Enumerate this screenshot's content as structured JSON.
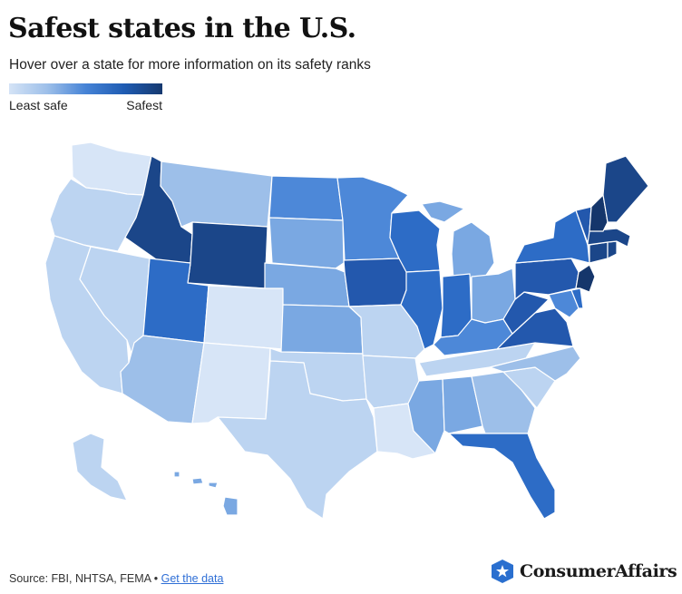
{
  "header": {
    "title": "Safest states in the U.S.",
    "subtitle": "Hover over a state for more information on its safety ranks"
  },
  "legend": {
    "min_label": "Least safe",
    "max_label": "Safest",
    "colors": [
      "#d4e3f6",
      "#9dbfe9",
      "#4683d6",
      "#1f5cb3",
      "#16396f"
    ]
  },
  "map": {
    "scale_legend": "darker = safer",
    "shade_levels": {
      "1": "#d7e5f7",
      "2": "#bcd4f1",
      "3": "#9dbfe9",
      "4": "#7aa8e2",
      "5": "#4d88d8",
      "6": "#2d6cc6",
      "7": "#2358ad",
      "8": "#1b4689",
      "9": "#15366b"
    },
    "states": [
      {
        "code": "WA",
        "level": 1
      },
      {
        "code": "OR",
        "level": 2
      },
      {
        "code": "CA",
        "level": 2
      },
      {
        "code": "NV",
        "level": 2
      },
      {
        "code": "ID",
        "level": 8
      },
      {
        "code": "MT",
        "level": 3
      },
      {
        "code": "WY",
        "level": 8
      },
      {
        "code": "UT",
        "level": 6
      },
      {
        "code": "AZ",
        "level": 3
      },
      {
        "code": "CO",
        "level": 1
      },
      {
        "code": "NM",
        "level": 1
      },
      {
        "code": "ND",
        "level": 5
      },
      {
        "code": "SD",
        "level": 4
      },
      {
        "code": "NE",
        "level": 4
      },
      {
        "code": "KS",
        "level": 4
      },
      {
        "code": "OK",
        "level": 2
      },
      {
        "code": "TX",
        "level": 2
      },
      {
        "code": "MN",
        "level": 5
      },
      {
        "code": "IA",
        "level": 7
      },
      {
        "code": "MO",
        "level": 2
      },
      {
        "code": "AR",
        "level": 2
      },
      {
        "code": "LA",
        "level": 1
      },
      {
        "code": "WI",
        "level": 6
      },
      {
        "code": "IL",
        "level": 6
      },
      {
        "code": "MI",
        "level": 4
      },
      {
        "code": "IN",
        "level": 6
      },
      {
        "code": "OH",
        "level": 4
      },
      {
        "code": "KY",
        "level": 5
      },
      {
        "code": "TN",
        "level": 2
      },
      {
        "code": "MS",
        "level": 4
      },
      {
        "code": "AL",
        "level": 4
      },
      {
        "code": "GA",
        "level": 3
      },
      {
        "code": "FL",
        "level": 6
      },
      {
        "code": "SC",
        "level": 2
      },
      {
        "code": "NC",
        "level": 3
      },
      {
        "code": "VA",
        "level": 7
      },
      {
        "code": "WV",
        "level": 7
      },
      {
        "code": "PA",
        "level": 7
      },
      {
        "code": "NY",
        "level": 6
      },
      {
        "code": "MD",
        "level": 5
      },
      {
        "code": "DE",
        "level": 6
      },
      {
        "code": "NJ",
        "level": 9
      },
      {
        "code": "CT",
        "level": 8
      },
      {
        "code": "RI",
        "level": 8
      },
      {
        "code": "MA",
        "level": 8
      },
      {
        "code": "VT",
        "level": 7
      },
      {
        "code": "NH",
        "level": 9
      },
      {
        "code": "ME",
        "level": 8
      },
      {
        "code": "AK",
        "level": 2
      },
      {
        "code": "HI",
        "level": 4
      }
    ]
  },
  "footer": {
    "source_text": "Source: FBI, NHTSA, FEMA • ",
    "link_text": "Get the data"
  },
  "brand": {
    "name": "ConsumerAffairs"
  }
}
